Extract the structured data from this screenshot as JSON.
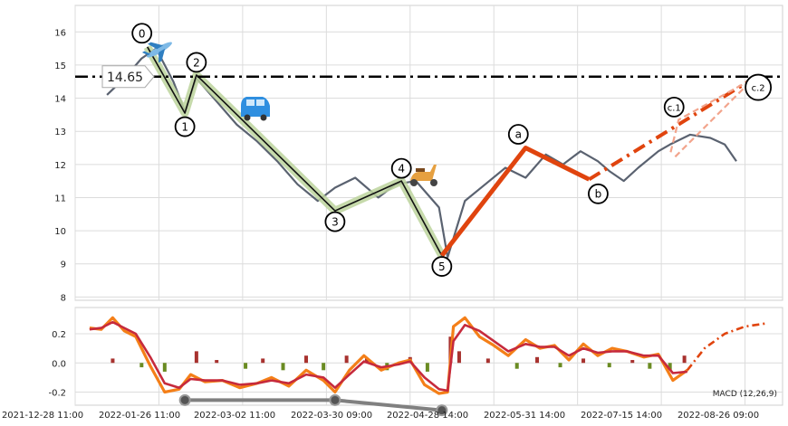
{
  "chart_data": [
    {
      "type": "line",
      "panel": "price",
      "ylim": [
        7.9,
        16.8
      ],
      "yticks": [
        "8",
        "9",
        "10",
        "11",
        "12",
        "13",
        "14",
        "15",
        "16"
      ],
      "grid": true,
      "price_series": {
        "x": [
          "2022-01-08",
          "2022-01-14",
          "2022-01-20",
          "2022-01-25",
          "2022-01-31",
          "2022-02-04",
          "2022-02-08",
          "2022-02-15",
          "2022-02-22",
          "2022-03-01",
          "2022-03-08",
          "2022-03-15",
          "2022-03-22",
          "2022-03-28",
          "2022-04-04",
          "2022-04-12",
          "2022-04-18",
          "2022-04-25",
          "2022-05-03",
          "2022-05-06",
          "2022-05-12",
          "2022-05-19",
          "2022-05-26",
          "2022-06-02",
          "2022-06-09",
          "2022-06-15",
          "2022-06-21",
          "2022-06-27",
          "2022-07-01",
          "2022-07-06",
          "2022-07-11",
          "2022-07-18",
          "2022-07-22",
          "2022-07-29",
          "2022-08-05",
          "2022-08-10",
          "2022-08-14"
        ],
        "y": [
          14.1,
          14.6,
          15.2,
          15.5,
          14.5,
          13.6,
          14.6,
          13.9,
          13.2,
          12.7,
          12.1,
          11.4,
          10.9,
          11.3,
          11.6,
          11.0,
          11.4,
          11.5,
          10.7,
          9.2,
          10.9,
          11.4,
          11.9,
          11.6,
          12.3,
          12.0,
          12.4,
          12.1,
          11.8,
          11.5,
          11.9,
          12.4,
          12.6,
          12.9,
          12.8,
          12.6,
          12.1
        ],
        "color": "#5a6270"
      },
      "wave_impulse": {
        "labels": [
          "0",
          "1",
          "2",
          "3",
          "4",
          "5"
        ],
        "x": [
          "2022-01-22",
          "2022-02-04",
          "2022-02-08",
          "2022-03-28",
          "2022-04-20",
          "2022-05-04"
        ],
        "y": [
          15.55,
          13.55,
          14.7,
          10.6,
          11.5,
          9.25
        ],
        "color": "#111111",
        "band_color": "#bcd39c"
      },
      "wave_correction": {
        "labels": [
          "a",
          "b",
          "c.1",
          "c.2"
        ],
        "x": [
          "2022-06-02",
          "2022-06-24",
          "2022-07-25",
          "2022-08-20"
        ],
        "y": [
          12.5,
          11.55,
          13.35,
          14.6
        ],
        "color": "#e0440e"
      },
      "level": {
        "value": 14.65,
        "label": "14.65"
      },
      "icons": [
        "airplane-icon",
        "car-icon",
        "scooter-icon"
      ]
    },
    {
      "type": "line",
      "panel": "macd",
      "legend": "MACD (12,26,9)",
      "ylim": [
        -0.29,
        0.38
      ],
      "yticks": [
        "0.2",
        "0.0",
        "-0.2"
      ],
      "x_tick_labels": [
        "2021-12-28 11:00",
        "2022-01-26 11:00",
        "2022-03-02 11:00",
        "2022-03-30 09:00",
        "2022-04-28 14:00",
        "2022-05-31 14:00",
        "2022-07-15 14:00",
        "2022-08-26 09:00"
      ],
      "x_ticks": [
        "2021-12-28",
        "2022-01-26",
        "2022-02-24",
        "2022-03-25",
        "2022-04-23",
        "2022-05-22",
        "2022-06-20",
        "2022-07-19",
        "2022-08-17"
      ],
      "series": [
        {
          "x": [
            "2022-01-02",
            "2022-01-06",
            "2022-01-10",
            "2022-01-14",
            "2022-01-18",
            "2022-01-23",
            "2022-01-28",
            "2022-02-02",
            "2022-02-06",
            "2022-02-11",
            "2022-02-17",
            "2022-02-23",
            "2022-03-01",
            "2022-03-06",
            "2022-03-12",
            "2022-03-18",
            "2022-03-24",
            "2022-03-28",
            "2022-04-02",
            "2022-04-07",
            "2022-04-13",
            "2022-04-19",
            "2022-04-23",
            "2022-04-28",
            "2022-05-03",
            "2022-05-06",
            "2022-05-08",
            "2022-05-12",
            "2022-05-17",
            "2022-05-22",
            "2022-05-27",
            "2022-06-02",
            "2022-06-07",
            "2022-06-12",
            "2022-06-17",
            "2022-06-22",
            "2022-06-27",
            "2022-07-02",
            "2022-07-07",
            "2022-07-13",
            "2022-07-18",
            "2022-07-23",
            "2022-07-28"
          ],
          "y": [
            0.24,
            0.23,
            0.31,
            0.22,
            0.18,
            -0.02,
            -0.2,
            -0.18,
            -0.08,
            -0.13,
            -0.12,
            -0.17,
            -0.14,
            -0.1,
            -0.16,
            -0.05,
            -0.12,
            -0.2,
            -0.05,
            0.05,
            -0.05,
            0.0,
            0.02,
            -0.15,
            -0.21,
            -0.2,
            0.25,
            0.31,
            0.18,
            0.12,
            0.05,
            0.16,
            0.1,
            0.12,
            0.02,
            0.13,
            0.05,
            0.1,
            0.08,
            0.04,
            0.06,
            -0.12,
            -0.05
          ],
          "color": "#f47f18"
        },
        {
          "x": [
            "2022-01-02",
            "2022-01-06",
            "2022-01-10",
            "2022-01-14",
            "2022-01-18",
            "2022-01-23",
            "2022-01-28",
            "2022-02-02",
            "2022-02-06",
            "2022-02-11",
            "2022-02-17",
            "2022-02-23",
            "2022-03-01",
            "2022-03-06",
            "2022-03-12",
            "2022-03-18",
            "2022-03-24",
            "2022-03-28",
            "2022-04-02",
            "2022-04-07",
            "2022-04-13",
            "2022-04-19",
            "2022-04-23",
            "2022-04-28",
            "2022-05-03",
            "2022-05-06",
            "2022-05-08",
            "2022-05-12",
            "2022-05-17",
            "2022-05-22",
            "2022-05-27",
            "2022-06-02",
            "2022-06-07",
            "2022-06-12",
            "2022-06-17",
            "2022-06-22",
            "2022-06-27",
            "2022-07-02",
            "2022-07-07",
            "2022-07-13",
            "2022-07-18",
            "2022-07-23",
            "2022-07-28"
          ],
          "y": [
            0.23,
            0.24,
            0.28,
            0.24,
            0.2,
            0.04,
            -0.14,
            -0.17,
            -0.11,
            -0.12,
            -0.12,
            -0.15,
            -0.14,
            -0.12,
            -0.14,
            -0.08,
            -0.1,
            -0.17,
            -0.08,
            0.01,
            -0.03,
            -0.01,
            0.01,
            -0.1,
            -0.18,
            -0.19,
            0.15,
            0.26,
            0.22,
            0.15,
            0.08,
            0.13,
            0.11,
            0.11,
            0.05,
            0.1,
            0.07,
            0.08,
            0.08,
            0.05,
            0.05,
            -0.07,
            -0.06
          ],
          "color": "#c62a3c"
        }
      ],
      "projection": {
        "x": [
          "2022-07-28",
          "2022-08-03",
          "2022-08-10",
          "2022-08-17",
          "2022-08-24"
        ],
        "y": [
          -0.05,
          0.1,
          0.2,
          0.25,
          0.27
        ],
        "color": "#e0440e"
      },
      "histogram": {
        "x": [
          "2022-01-10",
          "2022-01-20",
          "2022-01-28",
          "2022-02-08",
          "2022-02-15",
          "2022-02-25",
          "2022-03-03",
          "2022-03-10",
          "2022-03-18",
          "2022-03-24",
          "2022-04-01",
          "2022-04-08",
          "2022-04-15",
          "2022-04-23",
          "2022-04-29",
          "2022-05-07",
          "2022-05-10",
          "2022-05-20",
          "2022-05-30",
          "2022-06-06",
          "2022-06-14",
          "2022-06-22",
          "2022-07-01",
          "2022-07-09",
          "2022-07-15",
          "2022-07-22",
          "2022-07-27"
        ],
        "y": [
          0.03,
          -0.03,
          -0.06,
          0.08,
          0.02,
          -0.04,
          0.03,
          -0.05,
          0.05,
          -0.05,
          0.05,
          0.03,
          -0.05,
          0.04,
          -0.06,
          0.18,
          0.08,
          0.03,
          -0.04,
          0.04,
          -0.03,
          0.03,
          -0.03,
          0.02,
          -0.04,
          -0.05,
          0.05
        ],
        "pos_color": "#a8322f",
        "neg_color": "#6a8b22"
      },
      "divergence": {
        "x": [
          "2022-02-04",
          "2022-03-28",
          "2022-05-04"
        ],
        "y": [
          -0.255,
          -0.255,
          -0.325
        ],
        "color": "#808080"
      }
    }
  ]
}
